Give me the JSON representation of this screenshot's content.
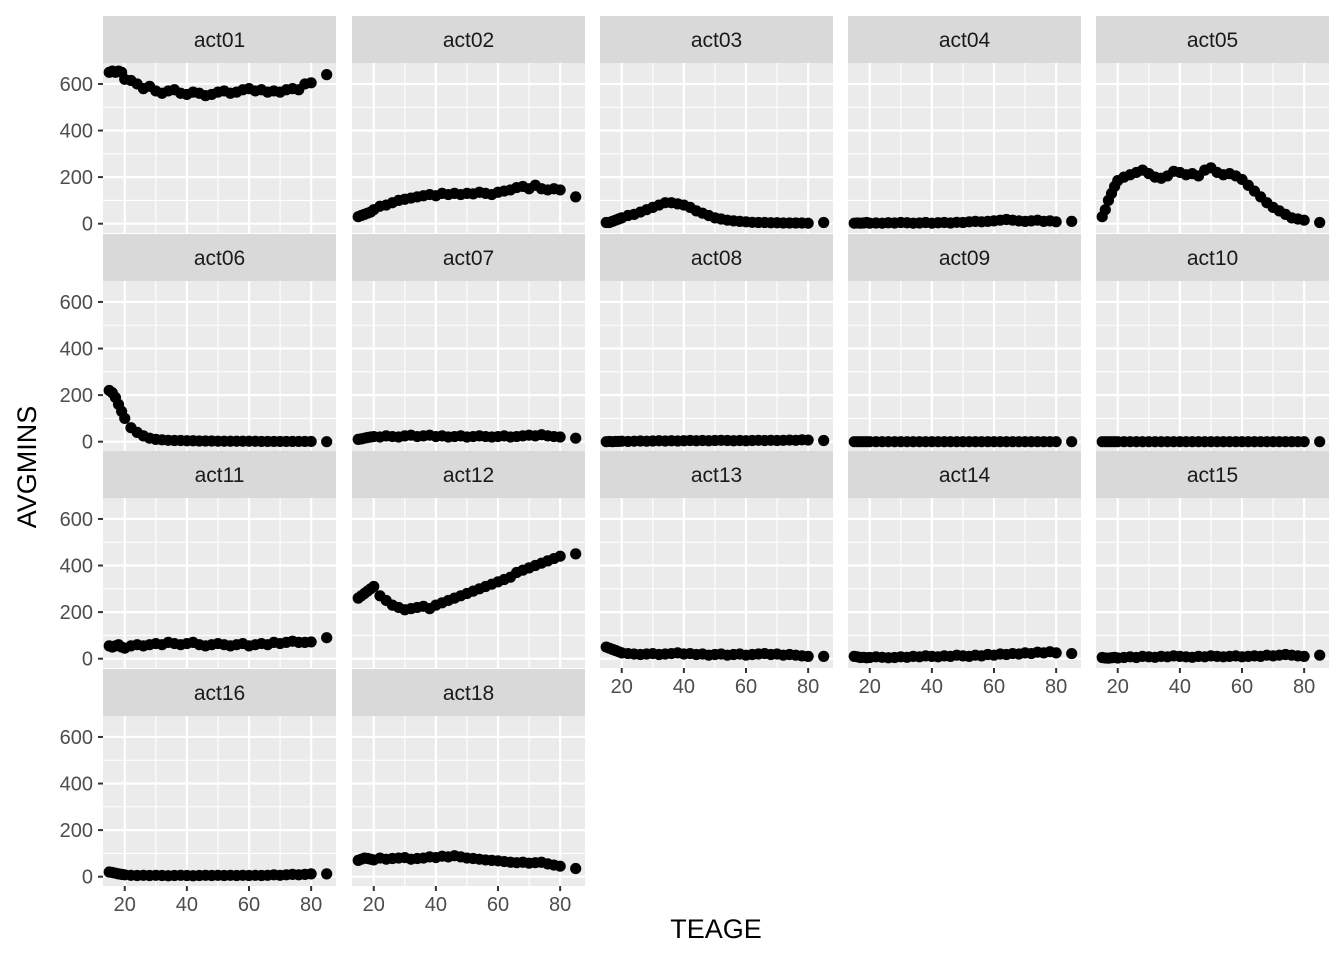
{
  "chart_data": {
    "type": "scatter",
    "xlabel": "TEAGE",
    "ylabel": "AVGMINS",
    "xlim": [
      13,
      88
    ],
    "ylim": [
      -40,
      690
    ],
    "x_ticks": [
      20,
      40,
      60,
      80
    ],
    "y_ticks": [
      0,
      200,
      400,
      600
    ],
    "grid": true,
    "facet_layout": "5 columns",
    "colors": {
      "panel_bg": "#ebebeb",
      "grid": "#ffffff",
      "strip_bg": "#d9d9d9",
      "point": "#000000",
      "text": "#4d4d4d"
    },
    "x": [
      15,
      16,
      17,
      18,
      19,
      20,
      22,
      24,
      26,
      28,
      30,
      32,
      34,
      36,
      38,
      40,
      42,
      44,
      46,
      48,
      50,
      52,
      54,
      56,
      58,
      60,
      62,
      64,
      66,
      68,
      70,
      72,
      74,
      76,
      78,
      80,
      85
    ],
    "panels": [
      {
        "name": "act01",
        "values": [
          650,
          655,
          650,
          655,
          650,
          620,
          615,
          600,
          580,
          590,
          570,
          560,
          570,
          575,
          560,
          555,
          565,
          560,
          550,
          555,
          565,
          570,
          560,
          565,
          575,
          580,
          570,
          575,
          565,
          570,
          565,
          575,
          580,
          575,
          600,
          605,
          640
        ]
      },
      {
        "name": "act02",
        "values": [
          30,
          35,
          40,
          45,
          50,
          60,
          75,
          80,
          90,
          100,
          105,
          110,
          115,
          120,
          125,
          120,
          130,
          125,
          130,
          125,
          130,
          128,
          135,
          130,
          125,
          135,
          140,
          145,
          155,
          160,
          150,
          165,
          150,
          145,
          150,
          145,
          115
        ]
      },
      {
        "name": "act03",
        "values": [
          5,
          5,
          10,
          15,
          20,
          25,
          35,
          40,
          50,
          60,
          70,
          80,
          90,
          90,
          85,
          80,
          70,
          55,
          45,
          35,
          25,
          20,
          15,
          12,
          10,
          8,
          6,
          5,
          5,
          4,
          4,
          3,
          3,
          3,
          3,
          2,
          5
        ]
      },
      {
        "name": "act04",
        "values": [
          2,
          3,
          2,
          3,
          5,
          2,
          3,
          2,
          4,
          3,
          5,
          4,
          2,
          3,
          5,
          2,
          4,
          5,
          3,
          6,
          5,
          8,
          10,
          8,
          10,
          12,
          15,
          18,
          15,
          12,
          10,
          12,
          15,
          10,
          12,
          8,
          10
        ]
      },
      {
        "name": "act05",
        "values": [
          30,
          60,
          100,
          130,
          160,
          185,
          200,
          210,
          220,
          230,
          215,
          200,
          195,
          205,
          225,
          220,
          210,
          215,
          205,
          230,
          240,
          220,
          210,
          215,
          205,
          190,
          165,
          140,
          115,
          90,
          70,
          55,
          40,
          25,
          20,
          15,
          5
        ]
      },
      {
        "name": "act06",
        "values": [
          220,
          210,
          190,
          160,
          130,
          100,
          60,
          40,
          25,
          15,
          10,
          8,
          6,
          5,
          5,
          4,
          4,
          3,
          3,
          3,
          2,
          2,
          2,
          2,
          2,
          2,
          2,
          1,
          1,
          1,
          1,
          1,
          1,
          1,
          1,
          1,
          0
        ]
      },
      {
        "name": "act07",
        "values": [
          10,
          12,
          15,
          18,
          20,
          22,
          20,
          25,
          22,
          20,
          25,
          28,
          22,
          25,
          28,
          22,
          25,
          20,
          22,
          25,
          20,
          22,
          25,
          22,
          20,
          22,
          25,
          20,
          22,
          25,
          28,
          25,
          30,
          25,
          22,
          20,
          15
        ]
      },
      {
        "name": "act08",
        "values": [
          0,
          1,
          0,
          1,
          1,
          2,
          1,
          2,
          3,
          2,
          3,
          4,
          3,
          4,
          3,
          4,
          5,
          4,
          5,
          4,
          5,
          6,
          5,
          4,
          5,
          4,
          5,
          6,
          5,
          6,
          5,
          6,
          7,
          6,
          8,
          7,
          5
        ]
      },
      {
        "name": "act09",
        "values": [
          0,
          0,
          0,
          0,
          0,
          0,
          0,
          0,
          0,
          0,
          0,
          0,
          0,
          0,
          0,
          0,
          0,
          0,
          0,
          0,
          0,
          0,
          0,
          0,
          0,
          0,
          0,
          0,
          0,
          0,
          0,
          0,
          0,
          0,
          0,
          0,
          0
        ]
      },
      {
        "name": "act10",
        "values": [
          0,
          0,
          0,
          0,
          0,
          0,
          0,
          0,
          0,
          0,
          0,
          0,
          0,
          0,
          0,
          0,
          0,
          0,
          0,
          0,
          0,
          0,
          0,
          0,
          0,
          0,
          0,
          0,
          0,
          0,
          0,
          0,
          0,
          0,
          0,
          0,
          0
        ]
      },
      {
        "name": "act11",
        "values": [
          55,
          50,
          55,
          60,
          50,
          45,
          55,
          60,
          55,
          60,
          65,
          60,
          70,
          65,
          60,
          65,
          70,
          60,
          55,
          60,
          65,
          60,
          55,
          60,
          65,
          55,
          60,
          65,
          60,
          70,
          65,
          70,
          75,
          70,
          70,
          72,
          90
        ]
      },
      {
        "name": "act12",
        "values": [
          260,
          270,
          280,
          290,
          300,
          310,
          270,
          250,
          230,
          220,
          210,
          215,
          220,
          225,
          215,
          230,
          240,
          250,
          260,
          270,
          280,
          290,
          300,
          310,
          320,
          330,
          340,
          350,
          370,
          380,
          390,
          400,
          410,
          420,
          430,
          440,
          450
        ]
      },
      {
        "name": "act13",
        "values": [
          50,
          45,
          40,
          35,
          30,
          25,
          22,
          20,
          18,
          20,
          22,
          18,
          20,
          22,
          25,
          20,
          22,
          18,
          20,
          15,
          18,
          20,
          15,
          18,
          20,
          15,
          18,
          20,
          22,
          18,
          20,
          15,
          18,
          15,
          12,
          10,
          10
        ]
      },
      {
        "name": "act14",
        "values": [
          10,
          8,
          5,
          6,
          4,
          5,
          8,
          6,
          4,
          5,
          8,
          6,
          10,
          8,
          12,
          10,
          8,
          12,
          10,
          15,
          12,
          10,
          15,
          12,
          18,
          15,
          20,
          18,
          22,
          20,
          25,
          22,
          28,
          25,
          30,
          25,
          22
        ]
      },
      {
        "name": "act15",
        "values": [
          5,
          3,
          2,
          4,
          6,
          3,
          5,
          8,
          5,
          10,
          8,
          6,
          10,
          8,
          12,
          10,
          8,
          6,
          10,
          8,
          12,
          10,
          8,
          10,
          12,
          8,
          10,
          12,
          10,
          15,
          12,
          15,
          18,
          15,
          12,
          10,
          15
        ]
      },
      {
        "name": "act16",
        "values": [
          20,
          18,
          15,
          12,
          10,
          8,
          6,
          5,
          6,
          5,
          6,
          5,
          4,
          5,
          6,
          5,
          4,
          5,
          6,
          5,
          6,
          5,
          6,
          5,
          6,
          5,
          6,
          5,
          6,
          8,
          6,
          8,
          10,
          8,
          10,
          12,
          12
        ]
      },
      {
        "name": "act18",
        "values": [
          70,
          75,
          80,
          78,
          75,
          72,
          80,
          75,
          78,
          80,
          82,
          75,
          78,
          80,
          85,
          82,
          88,
          85,
          90,
          85,
          80,
          78,
          75,
          72,
          70,
          68,
          65,
          62,
          60,
          62,
          58,
          60,
          62,
          55,
          50,
          45,
          35
        ]
      }
    ]
  }
}
